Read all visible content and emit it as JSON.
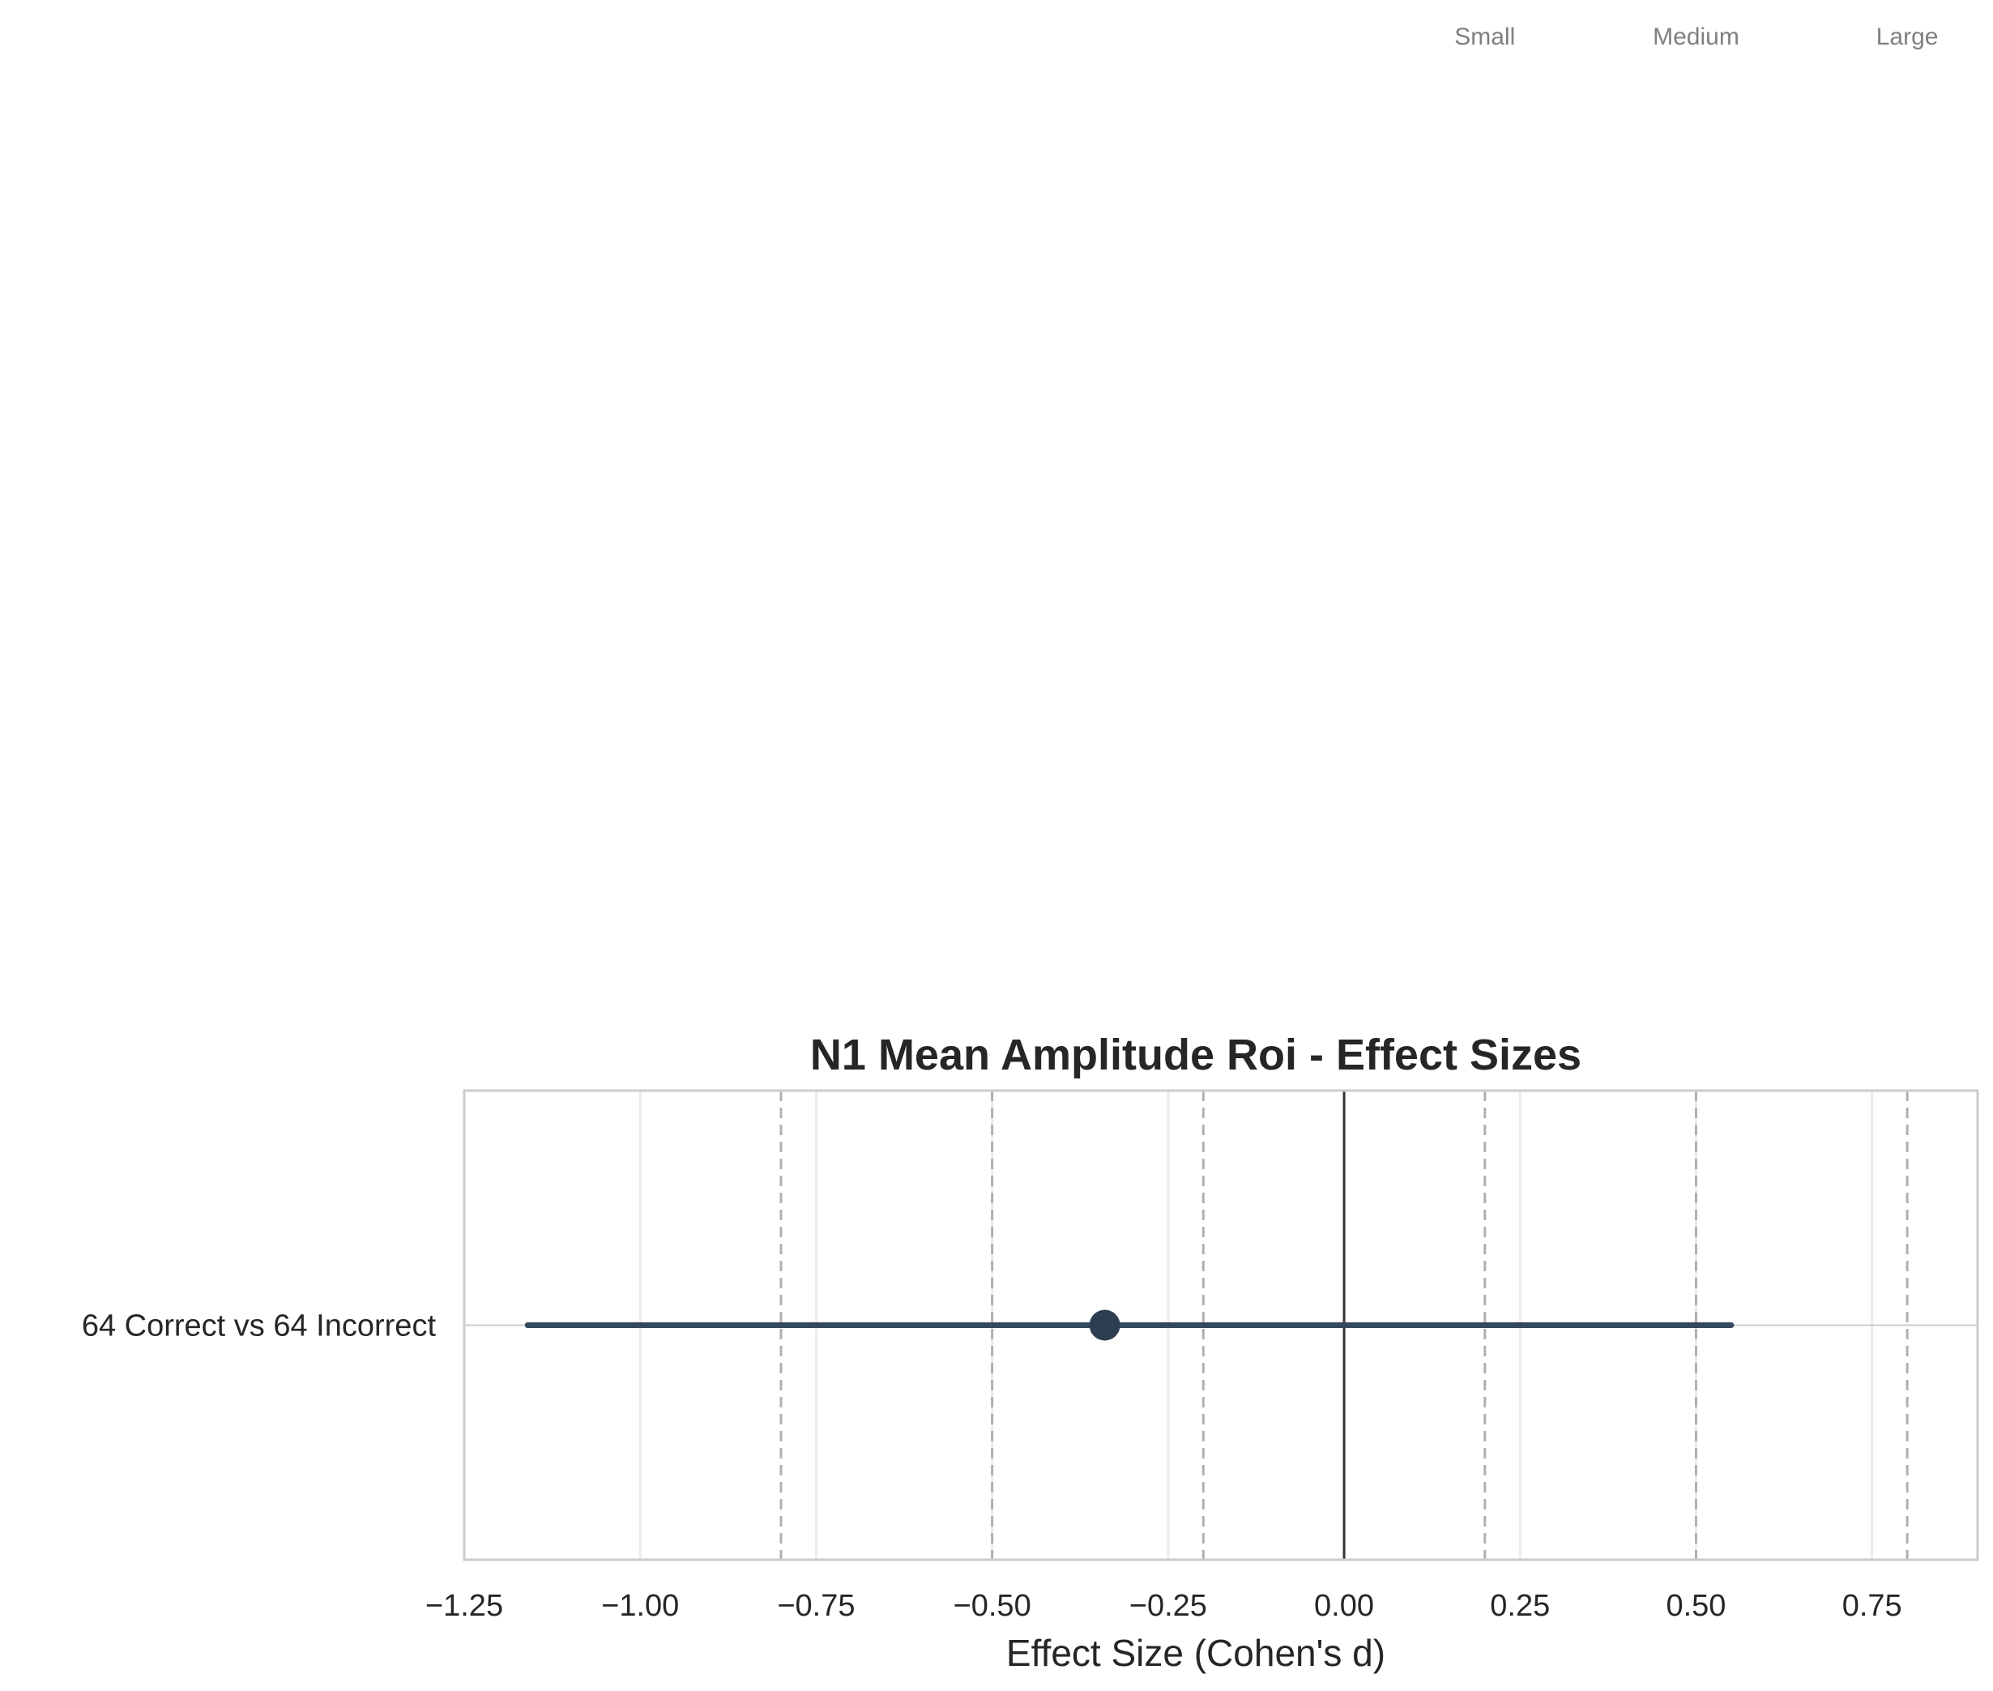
{
  "chart_data": {
    "type": "forest",
    "title": "N1 Mean Amplitude Roi - Effect Sizes",
    "xlabel": "Effect Size (Cohen's d)",
    "ylabel": "",
    "xlim": [
      -1.25,
      0.9
    ],
    "xticks": [
      -1.25,
      -1.0,
      -0.75,
      -0.5,
      -0.25,
      0.0,
      0.25,
      0.5,
      0.75
    ],
    "xtick_labels": [
      "−1.25",
      "−1.00",
      "−0.75",
      "−0.50",
      "−0.25",
      "0.00",
      "0.25",
      "0.50",
      "0.75"
    ],
    "grid": true,
    "zero_line": 0.0,
    "reference_lines": [
      -0.8,
      -0.5,
      -0.2,
      0.2,
      0.5,
      0.8
    ],
    "reference_labels": [
      {
        "label": "Small",
        "x": 0.2
      },
      {
        "label": "Medium",
        "x": 0.5
      },
      {
        "label": "Large",
        "x": 0.8
      }
    ],
    "rows": [
      {
        "label": "64 Correct vs 64 Incorrect",
        "estimate": -0.34,
        "ci_low": -1.16,
        "ci_high": 0.55
      }
    ],
    "colors": {
      "point": "#2c3e50",
      "ci": "#34495e",
      "reference": "#b0b0b0",
      "grid": "#ebebeb",
      "zero": "#333333",
      "spine": "#cccccc",
      "text": "#262626",
      "ref_label": "#808080"
    }
  }
}
